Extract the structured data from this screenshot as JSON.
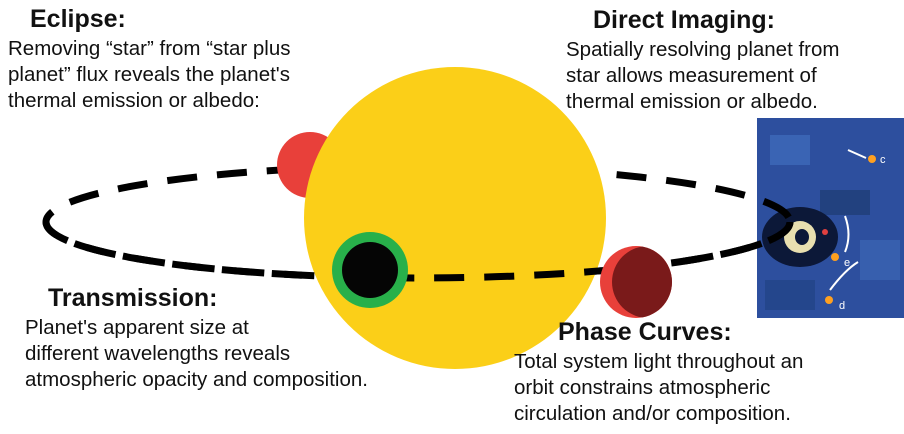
{
  "sections": [
    {
      "title": "Eclipse:",
      "lines": [
        "Removing “star” from “star  plus",
        "planet” flux  reveals the planet's",
        "thermal emission or albedo:"
      ]
    },
    {
      "title": "Direct Imaging:",
      "lines": [
        "Spatially resolving planet from",
        "star allows measurement of",
        "thermal emission or albedo."
      ]
    },
    {
      "title": "Transmission:",
      "lines": [
        "Planet's apparent size at",
        "different wavelengths reveals",
        "atmospheric opacity and composition."
      ]
    },
    {
      "title": "Phase Curves:",
      "lines": [
        "Total system light throughout an",
        "orbit constrains atmospheric",
        "circulation and/or composition."
      ]
    }
  ],
  "image_labels": [
    "c",
    "e",
    "d"
  ]
}
